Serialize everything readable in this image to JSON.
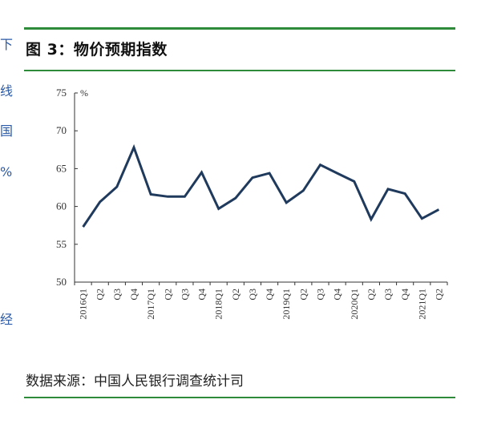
{
  "header": {
    "title": "图 3：物价预期指数"
  },
  "left_fragments": [
    "下",
    "线",
    "国",
    "%",
    "经"
  ],
  "chart_data": {
    "type": "line",
    "title": "图 3：物价预期指数",
    "ylabel": "%",
    "ylim": [
      50,
      75
    ],
    "yticks": [
      50,
      55,
      60,
      65,
      70,
      75
    ],
    "categories": [
      "2016Q1",
      "Q2",
      "Q3",
      "Q4",
      "2017Q1",
      "Q2",
      "Q3",
      "Q4",
      "2018Q1",
      "Q2",
      "Q3",
      "Q4",
      "2019Q1",
      "Q2",
      "Q3",
      "Q4",
      "2020Q1",
      "Q2",
      "Q3",
      "Q4",
      "2021Q1",
      "Q2"
    ],
    "series": [
      {
        "name": "物价预期指数",
        "values": [
          57.3,
          60.6,
          62.6,
          67.8,
          61.6,
          61.3,
          61.3,
          64.5,
          59.7,
          61.1,
          63.8,
          64.4,
          60.5,
          62.1,
          65.5,
          64.4,
          63.3,
          58.3,
          62.3,
          61.7,
          58.4,
          59.6
        ]
      }
    ],
    "line_color": "#1f3a5c"
  },
  "footer": {
    "source": "数据来源：中国人民银行调查统计司"
  }
}
